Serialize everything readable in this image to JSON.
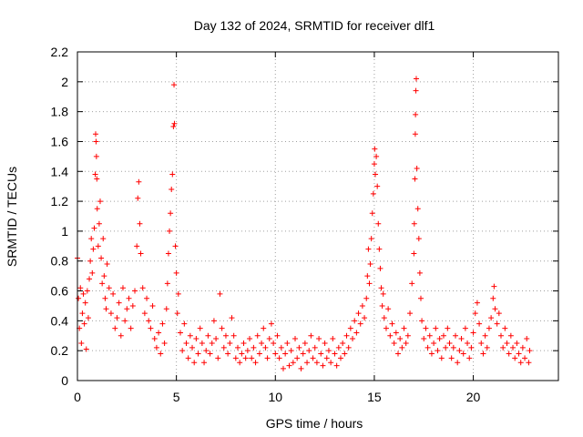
{
  "chart_data": {
    "type": "scatter",
    "title": "Day 132 of 2024, SRMTID for receiver dlf1",
    "xlabel": "GPS time / hours",
    "ylabel": "SRMTID / TECUs",
    "xlim": [
      0,
      24.3
    ],
    "ylim": [
      0,
      2.2
    ],
    "xticks": [
      0,
      5,
      10,
      15,
      20
    ],
    "xtick_labels": [
      "0",
      "5",
      "10",
      "15",
      "20"
    ],
    "yticks": [
      0,
      0.2,
      0.4,
      0.6,
      0.8,
      1,
      1.2,
      1.4,
      1.6,
      1.8,
      2,
      2.2
    ],
    "ytick_labels": [
      "0",
      "0.2",
      "0.4",
      "0.6",
      "0.8",
      "1",
      "1.2",
      "1.4",
      "1.6",
      "1.8",
      "2",
      "2.2"
    ],
    "grid": true,
    "marker": "+",
    "color": "#ff0000",
    "series": [
      {
        "name": "SRMTID",
        "points": [
          [
            0.0,
            0.82
          ],
          [
            0.05,
            0.55
          ],
          [
            0.1,
            0.35
          ],
          [
            0.15,
            0.62
          ],
          [
            0.2,
            0.25
          ],
          [
            0.25,
            0.45
          ],
          [
            0.3,
            0.58
          ],
          [
            0.35,
            0.38
          ],
          [
            0.4,
            0.52
          ],
          [
            0.45,
            0.21
          ],
          [
            0.5,
            0.6
          ],
          [
            0.55,
            0.42
          ],
          [
            0.6,
            0.68
          ],
          [
            0.65,
            0.8
          ],
          [
            0.7,
            0.95
          ],
          [
            0.75,
            0.72
          ],
          [
            0.8,
            0.88
          ],
          [
            0.85,
            1.02
          ],
          [
            0.9,
            1.38
          ],
          [
            0.92,
            1.65
          ],
          [
            0.94,
            1.6
          ],
          [
            0.96,
            1.5
          ],
          [
            0.98,
            1.35
          ],
          [
            1.0,
            1.15
          ],
          [
            1.05,
            0.9
          ],
          [
            1.1,
            1.05
          ],
          [
            1.15,
            1.2
          ],
          [
            1.2,
            0.82
          ],
          [
            1.25,
            0.65
          ],
          [
            1.3,
            0.95
          ],
          [
            1.35,
            0.7
          ],
          [
            1.4,
            0.55
          ],
          [
            1.45,
            0.48
          ],
          [
            1.5,
            0.78
          ],
          [
            1.6,
            0.62
          ],
          [
            1.7,
            0.45
          ],
          [
            1.8,
            0.58
          ],
          [
            1.9,
            0.35
          ],
          [
            2.0,
            0.42
          ],
          [
            2.1,
            0.52
          ],
          [
            2.2,
            0.3
          ],
          [
            2.3,
            0.62
          ],
          [
            2.4,
            0.4
          ],
          [
            2.5,
            0.48
          ],
          [
            2.6,
            0.55
          ],
          [
            2.7,
            0.35
          ],
          [
            2.8,
            0.5
          ],
          [
            2.9,
            0.6
          ],
          [
            3.0,
            0.9
          ],
          [
            3.05,
            1.22
          ],
          [
            3.1,
            1.33
          ],
          [
            3.15,
            1.05
          ],
          [
            3.2,
            0.85
          ],
          [
            3.3,
            0.62
          ],
          [
            3.4,
            0.45
          ],
          [
            3.5,
            0.55
          ],
          [
            3.6,
            0.4
          ],
          [
            3.7,
            0.35
          ],
          [
            3.8,
            0.5
          ],
          [
            3.9,
            0.28
          ],
          [
            4.0,
            0.22
          ],
          [
            4.1,
            0.32
          ],
          [
            4.2,
            0.18
          ],
          [
            4.3,
            0.38
          ],
          [
            4.4,
            0.25
          ],
          [
            4.5,
            0.48
          ],
          [
            4.55,
            0.65
          ],
          [
            4.6,
            0.85
          ],
          [
            4.65,
            1.0
          ],
          [
            4.7,
            1.12
          ],
          [
            4.75,
            1.28
          ],
          [
            4.8,
            1.38
          ],
          [
            4.85,
            1.7
          ],
          [
            4.88,
            1.98
          ],
          [
            4.9,
            1.72
          ],
          [
            4.95,
            0.9
          ],
          [
            5.0,
            0.72
          ],
          [
            5.05,
            0.45
          ],
          [
            5.1,
            0.58
          ],
          [
            5.2,
            0.32
          ],
          [
            5.3,
            0.2
          ],
          [
            5.4,
            0.38
          ],
          [
            5.5,
            0.25
          ],
          [
            5.6,
            0.15
          ],
          [
            5.7,
            0.3
          ],
          [
            5.8,
            0.22
          ],
          [
            5.9,
            0.12
          ],
          [
            6.0,
            0.28
          ],
          [
            6.1,
            0.18
          ],
          [
            6.2,
            0.35
          ],
          [
            6.3,
            0.25
          ],
          [
            6.4,
            0.12
          ],
          [
            6.5,
            0.2
          ],
          [
            6.6,
            0.3
          ],
          [
            6.7,
            0.18
          ],
          [
            6.8,
            0.25
          ],
          [
            6.9,
            0.4
          ],
          [
            7.0,
            0.28
          ],
          [
            7.1,
            0.15
          ],
          [
            7.2,
            0.58
          ],
          [
            7.3,
            0.35
          ],
          [
            7.4,
            0.22
          ],
          [
            7.5,
            0.3
          ],
          [
            7.6,
            0.18
          ],
          [
            7.7,
            0.25
          ],
          [
            7.8,
            0.42
          ],
          [
            7.9,
            0.3
          ],
          [
            8.0,
            0.15
          ],
          [
            8.1,
            0.22
          ],
          [
            8.2,
            0.12
          ],
          [
            8.3,
            0.18
          ],
          [
            8.4,
            0.25
          ],
          [
            8.5,
            0.15
          ],
          [
            8.6,
            0.2
          ],
          [
            8.7,
            0.28
          ],
          [
            8.8,
            0.15
          ],
          [
            8.9,
            0.22
          ],
          [
            9.0,
            0.12
          ],
          [
            9.1,
            0.3
          ],
          [
            9.2,
            0.18
          ],
          [
            9.3,
            0.25
          ],
          [
            9.4,
            0.35
          ],
          [
            9.5,
            0.22
          ],
          [
            9.6,
            0.15
          ],
          [
            9.7,
            0.28
          ],
          [
            9.8,
            0.38
          ],
          [
            9.9,
            0.25
          ],
          [
            10.0,
            0.18
          ],
          [
            10.1,
            0.3
          ],
          [
            10.2,
            0.15
          ],
          [
            10.3,
            0.22
          ],
          [
            10.4,
            0.08
          ],
          [
            10.5,
            0.18
          ],
          [
            10.6,
            0.25
          ],
          [
            10.7,
            0.1
          ],
          [
            10.8,
            0.2
          ],
          [
            10.9,
            0.12
          ],
          [
            11.0,
            0.28
          ],
          [
            11.1,
            0.15
          ],
          [
            11.2,
            0.22
          ],
          [
            11.3,
            0.08
          ],
          [
            11.4,
            0.18
          ],
          [
            11.5,
            0.25
          ],
          [
            11.6,
            0.12
          ],
          [
            11.7,
            0.2
          ],
          [
            11.8,
            0.3
          ],
          [
            11.9,
            0.15
          ],
          [
            12.0,
            0.22
          ],
          [
            12.1,
            0.12
          ],
          [
            12.2,
            0.28
          ],
          [
            12.3,
            0.18
          ],
          [
            12.4,
            0.1
          ],
          [
            12.5,
            0.25
          ],
          [
            12.6,
            0.15
          ],
          [
            12.7,
            0.2
          ],
          [
            12.8,
            0.12
          ],
          [
            12.9,
            0.28
          ],
          [
            13.0,
            0.18
          ],
          [
            13.1,
            0.1
          ],
          [
            13.2,
            0.22
          ],
          [
            13.3,
            0.15
          ],
          [
            13.4,
            0.25
          ],
          [
            13.5,
            0.18
          ],
          [
            13.6,
            0.3
          ],
          [
            13.7,
            0.22
          ],
          [
            13.8,
            0.35
          ],
          [
            13.9,
            0.28
          ],
          [
            14.0,
            0.4
          ],
          [
            14.1,
            0.32
          ],
          [
            14.2,
            0.45
          ],
          [
            14.3,
            0.38
          ],
          [
            14.4,
            0.5
          ],
          [
            14.5,
            0.42
          ],
          [
            14.6,
            0.55
          ],
          [
            14.65,
            0.7
          ],
          [
            14.7,
            0.88
          ],
          [
            14.75,
            0.65
          ],
          [
            14.8,
            0.78
          ],
          [
            14.85,
            0.95
          ],
          [
            14.9,
            1.12
          ],
          [
            14.95,
            1.25
          ],
          [
            15.0,
            1.45
          ],
          [
            15.02,
            1.55
          ],
          [
            15.05,
            1.38
          ],
          [
            15.1,
            1.5
          ],
          [
            15.15,
            1.3
          ],
          [
            15.2,
            1.05
          ],
          [
            15.25,
            0.88
          ],
          [
            15.3,
            0.75
          ],
          [
            15.35,
            0.62
          ],
          [
            15.4,
            0.5
          ],
          [
            15.45,
            0.58
          ],
          [
            15.5,
            0.42
          ],
          [
            15.6,
            0.35
          ],
          [
            15.7,
            0.48
          ],
          [
            15.8,
            0.3
          ],
          [
            15.9,
            0.38
          ],
          [
            16.0,
            0.25
          ],
          [
            16.1,
            0.32
          ],
          [
            16.2,
            0.18
          ],
          [
            16.3,
            0.28
          ],
          [
            16.4,
            0.22
          ],
          [
            16.5,
            0.35
          ],
          [
            16.6,
            0.25
          ],
          [
            16.7,
            0.3
          ],
          [
            16.8,
            0.45
          ],
          [
            16.9,
            0.65
          ],
          [
            17.0,
            0.85
          ],
          [
            17.02,
            1.05
          ],
          [
            17.05,
            1.35
          ],
          [
            17.07,
            1.65
          ],
          [
            17.08,
            1.78
          ],
          [
            17.1,
            1.94
          ],
          [
            17.12,
            2.02
          ],
          [
            17.15,
            1.42
          ],
          [
            17.2,
            1.15
          ],
          [
            17.25,
            0.95
          ],
          [
            17.3,
            0.72
          ],
          [
            17.35,
            0.55
          ],
          [
            17.4,
            0.4
          ],
          [
            17.5,
            0.28
          ],
          [
            17.6,
            0.35
          ],
          [
            17.7,
            0.22
          ],
          [
            17.8,
            0.3
          ],
          [
            17.9,
            0.18
          ],
          [
            18.0,
            0.25
          ],
          [
            18.1,
            0.35
          ],
          [
            18.2,
            0.2
          ],
          [
            18.3,
            0.28
          ],
          [
            18.4,
            0.15
          ],
          [
            18.5,
            0.3
          ],
          [
            18.6,
            0.22
          ],
          [
            18.7,
            0.35
          ],
          [
            18.8,
            0.25
          ],
          [
            18.9,
            0.15
          ],
          [
            19.0,
            0.22
          ],
          [
            19.1,
            0.3
          ],
          [
            19.2,
            0.12
          ],
          [
            19.3,
            0.2
          ],
          [
            19.4,
            0.28
          ],
          [
            19.5,
            0.18
          ],
          [
            19.6,
            0.35
          ],
          [
            19.7,
            0.25
          ],
          [
            19.8,
            0.15
          ],
          [
            19.9,
            0.22
          ],
          [
            20.0,
            0.32
          ],
          [
            20.1,
            0.45
          ],
          [
            20.2,
            0.52
          ],
          [
            20.3,
            0.38
          ],
          [
            20.4,
            0.25
          ],
          [
            20.5,
            0.18
          ],
          [
            20.6,
            0.3
          ],
          [
            20.7,
            0.22
          ],
          [
            20.8,
            0.35
          ],
          [
            20.9,
            0.42
          ],
          [
            21.0,
            0.55
          ],
          [
            21.05,
            0.63
          ],
          [
            21.1,
            0.48
          ],
          [
            21.2,
            0.38
          ],
          [
            21.3,
            0.45
          ],
          [
            21.4,
            0.3
          ],
          [
            21.5,
            0.22
          ],
          [
            21.6,
            0.35
          ],
          [
            21.7,
            0.25
          ],
          [
            21.8,
            0.18
          ],
          [
            21.9,
            0.3
          ],
          [
            22.0,
            0.22
          ],
          [
            22.1,
            0.15
          ],
          [
            22.2,
            0.25
          ],
          [
            22.3,
            0.18
          ],
          [
            22.4,
            0.12
          ],
          [
            22.5,
            0.22
          ],
          [
            22.6,
            0.15
          ],
          [
            22.7,
            0.28
          ],
          [
            22.8,
            0.12
          ],
          [
            22.85,
            0.2
          ]
        ]
      }
    ]
  }
}
